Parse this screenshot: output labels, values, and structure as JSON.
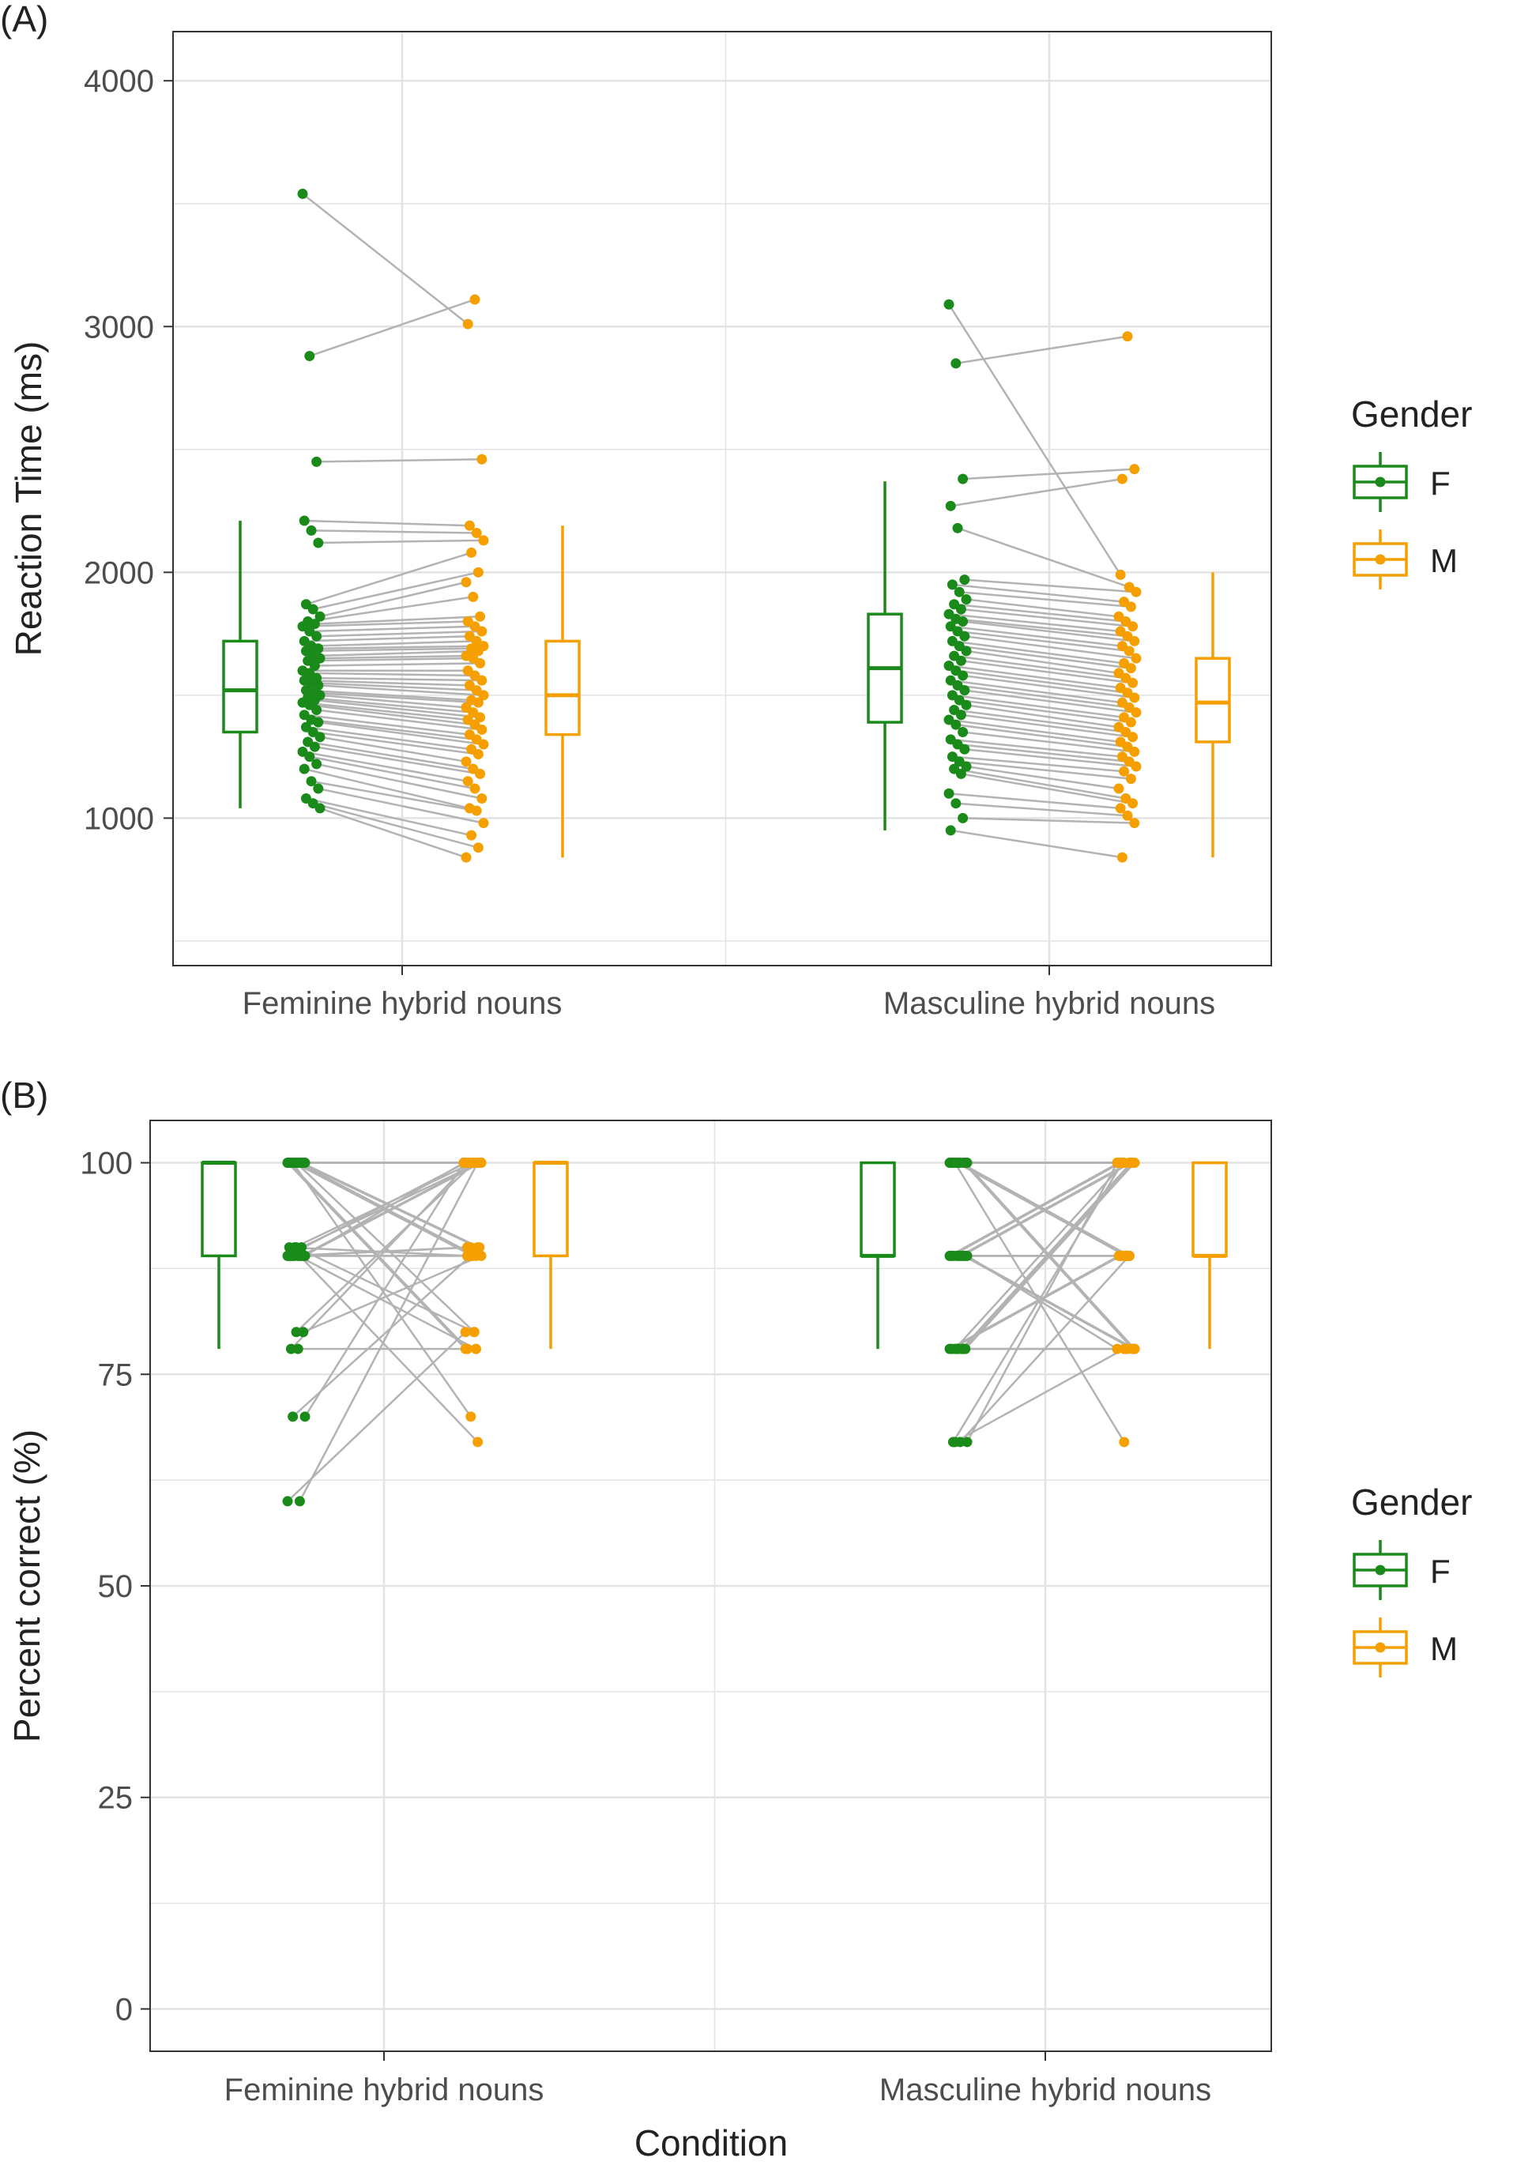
{
  "colors": {
    "F": "#1a8a1a",
    "M": "#f5a000",
    "pair_line": "#b3b3b3",
    "grid": "#e3e3e3",
    "axis": "#333333",
    "text": "#222222"
  },
  "chart_data": [
    {
      "type": "box_with_paired_points",
      "panel_label": "(A)",
      "xlabel": "",
      "ylabel": "Reaction Time (ms)",
      "ylim": [
        400,
        4200
      ],
      "y_ticks": [
        1000,
        2000,
        3000,
        4000
      ],
      "y_tick_labels": [
        "1000",
        "2000",
        "3000",
        "4000"
      ],
      "grid": true,
      "categories": [
        "Feminine hybrid nouns",
        "Masculine hybrid nouns"
      ],
      "legend": {
        "title": "Gender",
        "position": "right",
        "entries": [
          "F",
          "M"
        ]
      },
      "boxes": [
        {
          "category": "Feminine hybrid nouns",
          "group": "F",
          "whisker_low": 1040,
          "q1": 1350,
          "median": 1520,
          "q3": 1720,
          "whisker_high": 2210
        },
        {
          "category": "Feminine hybrid nouns",
          "group": "M",
          "whisker_low": 840,
          "q1": 1340,
          "median": 1500,
          "q3": 1720,
          "whisker_high": 2190
        },
        {
          "category": "Masculine hybrid nouns",
          "group": "F",
          "whisker_low": 950,
          "q1": 1390,
          "median": 1610,
          "q3": 1830,
          "whisker_high": 2370
        },
        {
          "category": "Masculine hybrid nouns",
          "group": "M",
          "whisker_low": 840,
          "q1": 1310,
          "median": 1470,
          "q3": 1650,
          "whisker_high": 2000
        }
      ],
      "pairs": [
        {
          "category": "Feminine hybrid nouns",
          "F": [
            3540,
            2880,
            2450,
            2210,
            2170,
            2120,
            1870,
            1850,
            1820,
            1800,
            1790,
            1780,
            1760,
            1740,
            1720,
            1700,
            1690,
            1680,
            1660,
            1650,
            1640,
            1620,
            1600,
            1590,
            1570,
            1560,
            1550,
            1540,
            1520,
            1510,
            1500,
            1490,
            1480,
            1470,
            1460,
            1440,
            1420,
            1400,
            1390,
            1370,
            1350,
            1330,
            1310,
            1290,
            1270,
            1250,
            1220,
            1200,
            1150,
            1120,
            1080,
            1060,
            1040
          ],
          "M": [
            3010,
            3110,
            2460,
            2190,
            2160,
            2130,
            2080,
            2000,
            1960,
            1900,
            1820,
            1800,
            1780,
            1760,
            1740,
            1720,
            1700,
            1690,
            1680,
            1660,
            1650,
            1630,
            1600,
            1580,
            1560,
            1540,
            1520,
            1500,
            1480,
            1470,
            1450,
            1430,
            1410,
            1400,
            1380,
            1360,
            1340,
            1320,
            1300,
            1280,
            1260,
            1230,
            1200,
            1180,
            1150,
            1120,
            1080,
            1040,
            1030,
            980,
            930,
            880,
            840
          ]
        },
        {
          "category": "Masculine hybrid nouns",
          "F": [
            3090,
            2850,
            2380,
            2270,
            2180,
            1970,
            1950,
            1920,
            1890,
            1870,
            1850,
            1830,
            1810,
            1800,
            1780,
            1760,
            1740,
            1720,
            1700,
            1680,
            1660,
            1640,
            1620,
            1600,
            1580,
            1560,
            1540,
            1520,
            1500,
            1480,
            1460,
            1440,
            1420,
            1400,
            1380,
            1350,
            1320,
            1300,
            1280,
            1250,
            1230,
            1210,
            1200,
            1180,
            1100,
            1060,
            1000,
            950
          ],
          "M": [
            1990,
            2960,
            2420,
            2380,
            1940,
            1920,
            1880,
            1860,
            1820,
            1800,
            1780,
            1760,
            1740,
            1720,
            1700,
            1680,
            1650,
            1630,
            1610,
            1590,
            1570,
            1550,
            1530,
            1510,
            1490,
            1470,
            1450,
            1430,
            1410,
            1390,
            1370,
            1350,
            1330,
            1310,
            1290,
            1270,
            1250,
            1230,
            1210,
            1190,
            1160,
            1120,
            1080,
            1060,
            1040,
            1010,
            980,
            840
          ]
        }
      ]
    },
    {
      "type": "box_with_paired_points",
      "panel_label": "(B)",
      "xlabel": "Condition",
      "ylabel": "Percent correct (%)",
      "ylim": [
        -5,
        105
      ],
      "y_ticks": [
        0,
        25,
        50,
        75,
        100
      ],
      "y_tick_labels": [
        "0",
        "25",
        "50",
        "75",
        "100"
      ],
      "grid": true,
      "categories": [
        "Feminine hybrid nouns",
        "Masculine hybrid nouns"
      ],
      "legend": {
        "title": "Gender",
        "position": "right",
        "entries": [
          "F",
          "M"
        ]
      },
      "boxes": [
        {
          "category": "Feminine hybrid nouns",
          "group": "F",
          "whisker_low": 78,
          "q1": 89,
          "median": 100,
          "q3": 100,
          "whisker_high": 100
        },
        {
          "category": "Feminine hybrid nouns",
          "group": "M",
          "whisker_low": 78,
          "q1": 89,
          "median": 100,
          "q3": 100,
          "whisker_high": 100
        },
        {
          "category": "Masculine hybrid nouns",
          "group": "F",
          "whisker_low": 78,
          "q1": 89,
          "median": 89,
          "q3": 100,
          "whisker_high": 100
        },
        {
          "category": "Masculine hybrid nouns",
          "group": "M",
          "whisker_low": 78,
          "q1": 89,
          "median": 89,
          "q3": 100,
          "whisker_high": 100
        }
      ],
      "pairs": [
        {
          "category": "Feminine hybrid nouns",
          "F": [
            100,
            100,
            100,
            100,
            100,
            100,
            100,
            100,
            100,
            100,
            100,
            100,
            90,
            90,
            90,
            90,
            89,
            89,
            89,
            89,
            89,
            89,
            89,
            89,
            89,
            89,
            80,
            80,
            78,
            78,
            70,
            70,
            60,
            60
          ],
          "M": [
            100,
            89,
            90,
            78,
            80,
            100,
            100,
            89,
            100,
            70,
            90,
            78,
            100,
            100,
            89,
            80,
            100,
            89,
            78,
            100,
            90,
            67,
            100,
            89,
            100,
            90,
            100,
            89,
            100,
            78,
            100,
            89,
            100,
            80
          ]
        },
        {
          "category": "Masculine hybrid nouns",
          "F": [
            100,
            100,
            100,
            100,
            100,
            100,
            100,
            100,
            100,
            100,
            89,
            89,
            89,
            89,
            89,
            89,
            89,
            89,
            89,
            89,
            78,
            78,
            78,
            78,
            78,
            78,
            78,
            78,
            67,
            67,
            67,
            67
          ],
          "M": [
            100,
            89,
            78,
            100,
            89,
            78,
            100,
            89,
            100,
            67,
            100,
            100,
            89,
            78,
            100,
            89,
            78,
            89,
            100,
            78,
            100,
            100,
            89,
            78,
            100,
            89,
            78,
            100,
            100,
            89,
            100,
            78
          ]
        }
      ]
    }
  ]
}
